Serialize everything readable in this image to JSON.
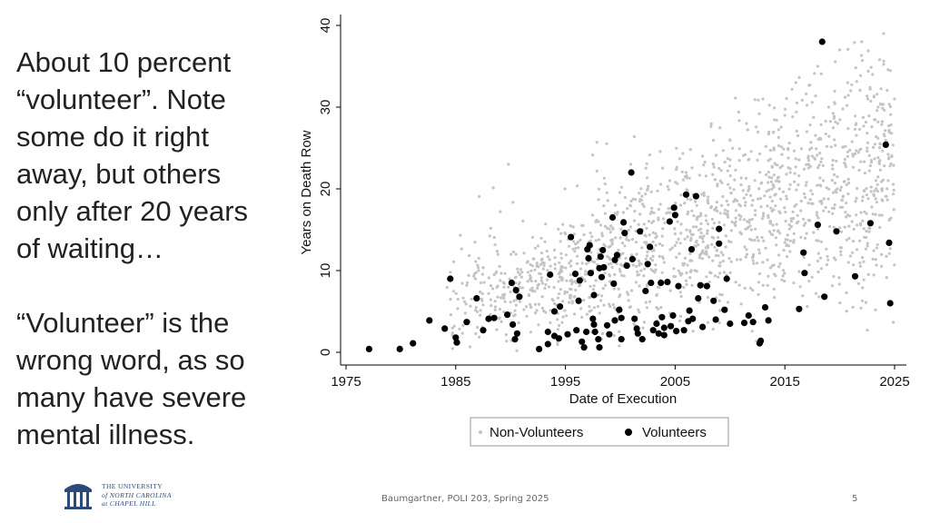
{
  "slide": {
    "text_block_1": "About 10 percent\n“volunteer”. Note\nsome do it right\naway, but others\nonly after 20 years\nof waiting…",
    "text_block_2": "“Volunteer” is the\nwrong word, as so\nmany have severe\nmental illness."
  },
  "footer": {
    "center": "Baumgartner, POLI 203, Spring 2025",
    "page_number": "5",
    "logo_line1": "THE UNIVERSITY",
    "logo_line2": "of NORTH CAROLINA",
    "logo_line3": "at CHAPEL HILL"
  },
  "colors": {
    "non_volunteer": "#c4c4c4",
    "volunteer": "#000000",
    "logo": "#2a4a7a"
  },
  "chart_data": {
    "type": "scatter",
    "xlabel": "Date of Execution",
    "ylabel": "Years on Death Row",
    "xlim": [
      1975,
      2025
    ],
    "ylim": [
      0,
      40
    ],
    "x_ticks": [
      1975,
      1985,
      1995,
      2005,
      2015,
      2025
    ],
    "y_ticks": [
      0,
      10,
      20,
      30,
      40
    ],
    "grid": false,
    "legend_position": "bottom",
    "series": [
      {
        "name": "Non-Volunteers",
        "marker": "small-dot",
        "points_summary": "dense cloud of roughly 1,500 executions; years on death row rise from about 2-12 in the late 1980s to about 10-38 by 2020-2025",
        "points": [
          [
            1984.5,
            9.8
          ],
          [
            1985.2,
            6.5
          ],
          [
            1986.0,
            8.2
          ],
          [
            1986.8,
            9.0
          ],
          [
            1987.5,
            5.8
          ],
          [
            1988.0,
            7.2
          ],
          [
            1988.5,
            9.5
          ],
          [
            1989.0,
            10.5
          ],
          [
            1989.5,
            6.2
          ],
          [
            1990.0,
            8.8
          ],
          [
            1990.5,
            12.0
          ],
          [
            1991.0,
            9.2
          ],
          [
            1991.5,
            11.0
          ],
          [
            1992.0,
            7.5
          ],
          [
            1992.5,
            13.0
          ],
          [
            1993.0,
            10.2
          ],
          [
            1993.5,
            8.0
          ],
          [
            1994.0,
            12.5
          ],
          [
            1994.5,
            9.8
          ],
          [
            1995.0,
            14.5
          ],
          [
            1995.5,
            11.2
          ],
          [
            1996.0,
            8.5
          ],
          [
            1996.5,
            15.5
          ],
          [
            1997.0,
            12.8
          ],
          [
            1997.5,
            10.0
          ],
          [
            1998.0,
            16.0
          ],
          [
            1998.5,
            13.2
          ],
          [
            1999.0,
            9.5
          ],
          [
            1999.5,
            17.0
          ],
          [
            2000.0,
            14.0
          ],
          [
            2000.5,
            11.5
          ],
          [
            2001.0,
            18.5
          ],
          [
            2001.5,
            12.0
          ],
          [
            2002.0,
            15.0
          ],
          [
            2002.5,
            20.0
          ],
          [
            2003.0,
            13.5
          ],
          [
            2003.5,
            17.5
          ],
          [
            2004.0,
            11.0
          ],
          [
            2004.5,
            21.0
          ],
          [
            2005.0,
            14.5
          ],
          [
            2005.5,
            18.0
          ],
          [
            2006.0,
            22.0
          ],
          [
            2006.5,
            12.5
          ],
          [
            2007.0,
            16.5
          ],
          [
            2007.5,
            24.0
          ],
          [
            2008.0,
            19.0
          ],
          [
            2008.5,
            14.0
          ],
          [
            2009.0,
            22.5
          ],
          [
            2009.5,
            17.0
          ],
          [
            2010.0,
            26.0
          ],
          [
            2010.5,
            15.5
          ],
          [
            2011.0,
            20.5
          ],
          [
            2011.5,
            28.0
          ],
          [
            2012.0,
            18.0
          ],
          [
            2012.5,
            23.5
          ],
          [
            2013.0,
            31.0
          ],
          [
            2013.5,
            16.5
          ],
          [
            2014.0,
            25.0
          ],
          [
            2014.5,
            20.0
          ],
          [
            2015.0,
            29.0
          ],
          [
            2015.5,
            22.0
          ],
          [
            2016.0,
            33.0
          ],
          [
            2016.5,
            18.5
          ],
          [
            2017.0,
            27.0
          ],
          [
            2017.5,
            24.0
          ],
          [
            2018.0,
            35.0
          ],
          [
            2018.5,
            21.0
          ],
          [
            2019.0,
            30.0
          ],
          [
            2019.5,
            26.0
          ],
          [
            2020.0,
            37.0
          ],
          [
            2020.5,
            23.0
          ],
          [
            2021.0,
            32.0
          ],
          [
            2021.5,
            28.0
          ],
          [
            2022.0,
            38.0
          ],
          [
            2022.5,
            25.0
          ],
          [
            2023.0,
            34.0
          ],
          [
            2023.5,
            30.0
          ],
          [
            2024.0,
            39.0
          ],
          [
            2024.5,
            27.0
          ],
          [
            2025.0,
            31.0
          ]
        ]
      },
      {
        "name": "Volunteers",
        "marker": "large-dot",
        "points": [
          [
            1977.1,
            0.4
          ],
          [
            1979.9,
            0.4
          ],
          [
            1981.1,
            1.1
          ],
          [
            1982.6,
            3.9
          ],
          [
            1984.5,
            9.0
          ],
          [
            1984.0,
            2.9
          ],
          [
            1985.1,
            1.2
          ],
          [
            1985.0,
            1.8
          ],
          [
            1986.0,
            3.7
          ],
          [
            1986.9,
            6.6
          ],
          [
            1987.5,
            2.7
          ],
          [
            1988.0,
            4.1
          ],
          [
            1988.5,
            4.2
          ],
          [
            1989.7,
            4.6
          ],
          [
            1990.1,
            8.5
          ],
          [
            1990.5,
            7.6
          ],
          [
            1990.8,
            6.8
          ],
          [
            1990.2,
            3.4
          ],
          [
            1990.4,
            1.6
          ],
          [
            1990.6,
            2.3
          ],
          [
            1992.6,
            0.4
          ],
          [
            1993.4,
            1.0
          ],
          [
            1993.4,
            2.5
          ],
          [
            1993.6,
            9.5
          ],
          [
            1994.0,
            5.0
          ],
          [
            1994.0,
            2.0
          ],
          [
            1994.4,
            1.7
          ],
          [
            1994.5,
            5.6
          ],
          [
            1995.2,
            2.2
          ],
          [
            1995.5,
            14.1
          ],
          [
            1995.9,
            9.6
          ],
          [
            1996.0,
            2.7
          ],
          [
            1996.2,
            6.3
          ],
          [
            1996.3,
            8.8
          ],
          [
            1996.5,
            1.3
          ],
          [
            1996.7,
            0.6
          ],
          [
            1996.9,
            2.5
          ],
          [
            1997.0,
            12.6
          ],
          [
            1997.1,
            11.5
          ],
          [
            1997.2,
            13.1
          ],
          [
            1997.3,
            9.7
          ],
          [
            1997.5,
            4.1
          ],
          [
            1997.6,
            7.0
          ],
          [
            1997.6,
            3.4
          ],
          [
            1997.7,
            2.5
          ],
          [
            1998.0,
            1.6
          ],
          [
            1998.1,
            0.6
          ],
          [
            1998.1,
            10.3
          ],
          [
            1998.2,
            11.7
          ],
          [
            1998.3,
            9.2
          ],
          [
            1998.4,
            12.5
          ],
          [
            1998.5,
            10.4
          ],
          [
            1998.8,
            3.3
          ],
          [
            1999.0,
            2.2
          ],
          [
            1999.3,
            16.5
          ],
          [
            1999.4,
            8.4
          ],
          [
            1999.5,
            3.9
          ],
          [
            1999.5,
            11.3
          ],
          [
            1999.7,
            11.9
          ],
          [
            1999.9,
            5.2
          ],
          [
            2000.1,
            1.6
          ],
          [
            2000.1,
            4.2
          ],
          [
            2000.3,
            15.9
          ],
          [
            2000.4,
            14.6
          ],
          [
            2000.6,
            10.6
          ],
          [
            2001.0,
            22.0
          ],
          [
            2001.1,
            11.4
          ],
          [
            2001.3,
            4.1
          ],
          [
            2001.5,
            2.9
          ],
          [
            2001.6,
            2.3
          ],
          [
            2001.8,
            14.8
          ],
          [
            2002.0,
            1.6
          ],
          [
            2002.3,
            7.5
          ],
          [
            2002.5,
            10.8
          ],
          [
            2002.7,
            12.9
          ],
          [
            2002.8,
            8.5
          ],
          [
            2003.0,
            2.7
          ],
          [
            2003.3,
            3.5
          ],
          [
            2003.5,
            2.3
          ],
          [
            2003.7,
            8.5
          ],
          [
            2003.8,
            4.3
          ],
          [
            2004.0,
            3.0
          ],
          [
            2004.0,
            2.1
          ],
          [
            2004.3,
            8.6
          ],
          [
            2004.5,
            16.0
          ],
          [
            2004.6,
            3.2
          ],
          [
            2004.8,
            4.5
          ],
          [
            2004.9,
            17.7
          ],
          [
            2005.0,
            16.8
          ],
          [
            2005.1,
            2.6
          ],
          [
            2005.3,
            8.1
          ],
          [
            2005.8,
            2.7
          ],
          [
            2006.0,
            19.3
          ],
          [
            2006.2,
            3.8
          ],
          [
            2006.3,
            5.1
          ],
          [
            2006.5,
            12.6
          ],
          [
            2006.6,
            4.1
          ],
          [
            2006.9,
            19.1
          ],
          [
            2007.1,
            6.6
          ],
          [
            2007.3,
            8.2
          ],
          [
            2007.5,
            3.1
          ],
          [
            2007.9,
            8.1
          ],
          [
            2008.5,
            6.3
          ],
          [
            2008.7,
            4.0
          ],
          [
            2009.0,
            15.1
          ],
          [
            2009.0,
            13.3
          ],
          [
            2009.5,
            5.2
          ],
          [
            2009.7,
            9.0
          ],
          [
            2010.0,
            3.5
          ],
          [
            2011.3,
            3.6
          ],
          [
            2011.7,
            4.5
          ],
          [
            2012.1,
            3.7
          ],
          [
            2012.7,
            1.1
          ],
          [
            2012.8,
            1.4
          ],
          [
            2013.2,
            5.5
          ],
          [
            2013.5,
            3.9
          ],
          [
            2016.3,
            5.3
          ],
          [
            2016.7,
            12.2
          ],
          [
            2016.8,
            9.7
          ],
          [
            2018.0,
            15.6
          ],
          [
            2018.4,
            38.0
          ],
          [
            2018.6,
            6.8
          ],
          [
            2019.7,
            14.8
          ],
          [
            2021.4,
            9.3
          ],
          [
            2022.8,
            15.8
          ],
          [
            2024.2,
            25.4
          ],
          [
            2024.5,
            13.4
          ],
          [
            2024.6,
            6.0
          ]
        ]
      }
    ]
  }
}
